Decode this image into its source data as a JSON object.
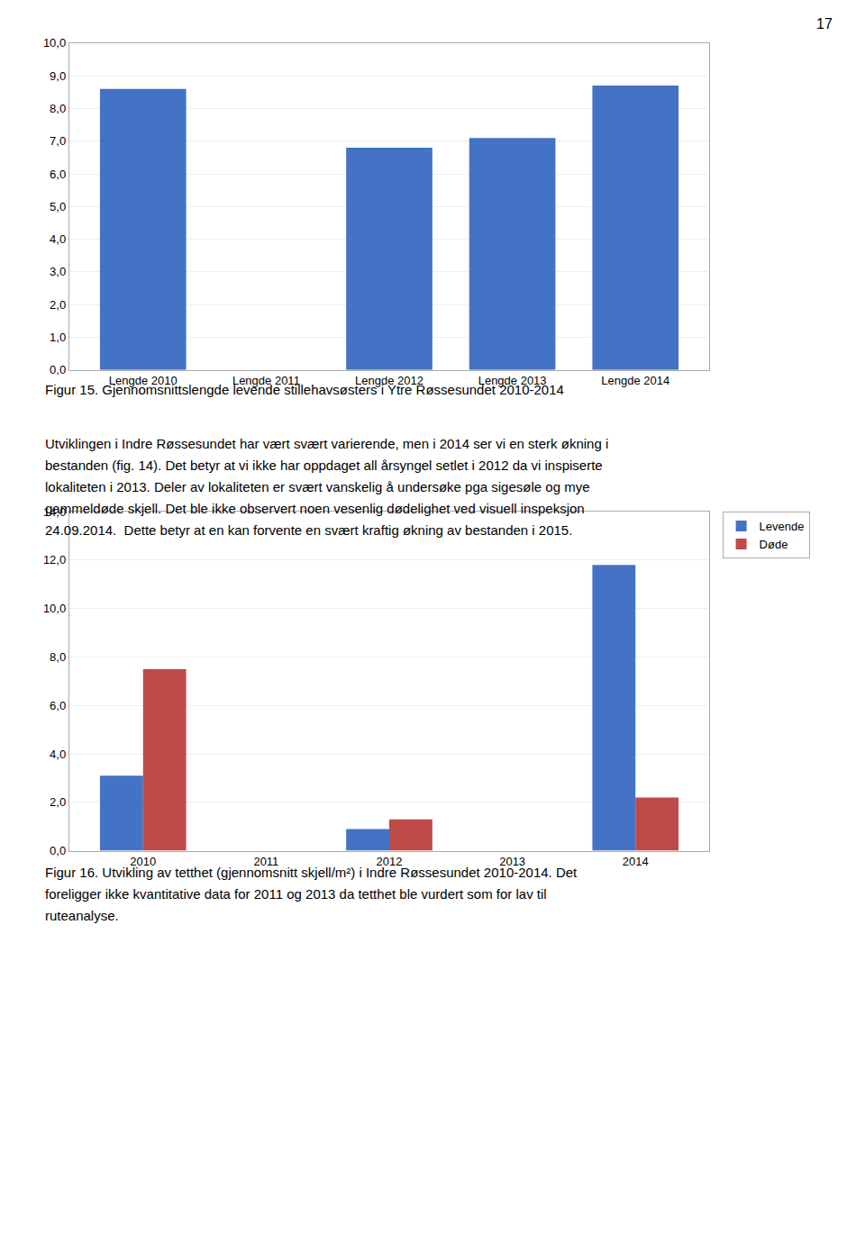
{
  "annotations": [
    "17"
  ],
  "chart_data": [
    {
      "type": "bar",
      "categories": [
        "Lengde 2010",
        "Lengde 2011",
        "Lengde 2012",
        "Lengde 2013",
        "Lengde 2014"
      ],
      "values": [
        8.6,
        0,
        6.8,
        7.1,
        8.7
      ],
      "color": "#4472C4",
      "ylim": [
        0,
        10.0
      ],
      "yticks": [
        {
          "value": 0.0,
          "label": "0,0"
        },
        {
          "value": 1.0,
          "label": "1,0"
        },
        {
          "value": 2.0,
          "label": "2,0"
        },
        {
          "value": 3.0,
          "label": "3,0"
        },
        {
          "value": 4.0,
          "label": "4,0"
        },
        {
          "value": 5.0,
          "label": "5,0"
        },
        {
          "value": 6.0,
          "label": "6,0"
        },
        {
          "value": 7.0,
          "label": "7,0"
        },
        {
          "value": 8.0,
          "label": "8,0"
        },
        {
          "value": 9.0,
          "label": "9,0"
        },
        {
          "value": 10.0,
          "label": "10,0"
        }
      ],
      "grid": true,
      "annotations": [
        "Figur 15. Gjennomsnittslengde levende stillehavsøsters i Ytre Røssesundet 2010-2014",
        "Utviklingen i Indre Røssesundet har vært svært varierende, men i 2014 ser vi en sterk økning i",
        "bestanden (fig. 14). Det betyr at vi ikke har oppdaget all årsyngel setlet i 2012 da vi inspiserte",
        "lokaliteten i 2013. Deler av lokaliteten er svært vanskelig å undersøke pga sigesøle og mye",
        "gammeldøde skjell. Det ble ikke observert noen vesenlig dødelighet ved visuell inspeksjon",
        "24.09.2014.  Dette betyr at en kan forvente en svært kraftig økning av bestanden i 2015."
      ]
    },
    {
      "type": "bar",
      "categories": [
        "2010",
        "2011",
        "2012",
        "2013",
        "2014"
      ],
      "series": [
        {
          "name": "Levende",
          "color": "#4472C4",
          "values": [
            3.1,
            0,
            0.9,
            0,
            11.8
          ]
        },
        {
          "name": "Døde",
          "color": "#BE4B48",
          "values": [
            7.5,
            0,
            1.3,
            0,
            2.2
          ]
        }
      ],
      "ylim": [
        0,
        14.0
      ],
      "yticks": [
        {
          "value": 0.0,
          "label": "0,0"
        },
        {
          "value": 2.0,
          "label": "2,0"
        },
        {
          "value": 4.0,
          "label": "4,0"
        },
        {
          "value": 6.0,
          "label": "6,0"
        },
        {
          "value": 8.0,
          "label": "8,0"
        },
        {
          "value": 10.0,
          "label": "10,0"
        },
        {
          "value": 12.0,
          "label": "12,0"
        },
        {
          "value": 14.0,
          "label": "14,0"
        }
      ],
      "grid": true,
      "legend": "upper right",
      "annotations": [
        "Figur 16. Utvikling av tetthet (gjennomsnitt skjell/m²) i Indre Røssesundet 2010-2014. Det",
        "foreligger ikke kvantitative data for 2011 og 2013 da tetthet ble vurdert som for lav til",
        "ruteanalyse."
      ]
    }
  ]
}
